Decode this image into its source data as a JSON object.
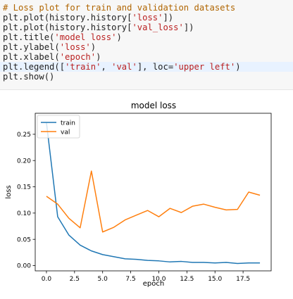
{
  "code_cell": {
    "lines": [
      "# Loss plot for train and validation datasets",
      "plt.plot(history.history['loss'])",
      "plt.plot(history.history['val_loss'])",
      "plt.title('model loss')",
      "plt.ylabel('loss')",
      "plt.xlabel('epoch')",
      "plt.legend(['train', 'val'], loc='upper left')",
      "plt.show()"
    ]
  },
  "colors": {
    "train": "#1f77b4",
    "val": "#ff7f0e",
    "code_comment": "#b06500",
    "code_string": "#ba2121",
    "active_line": "#e8f2ff"
  },
  "chart_data": {
    "type": "line",
    "title": "model loss",
    "xlabel": "epoch",
    "ylabel": "loss",
    "x": [
      0,
      1,
      2,
      3,
      4,
      5,
      6,
      7,
      8,
      9,
      10,
      11,
      12,
      13,
      14,
      15,
      16,
      17,
      18,
      19
    ],
    "xlim": [
      -1,
      20
    ],
    "ylim": [
      -0.01,
      0.29
    ],
    "xticks": [
      0,
      2.5,
      5,
      7.5,
      10,
      12.5,
      15,
      17.5
    ],
    "xtick_labels": [
      "0.0",
      "2.5",
      "5.0",
      "7.5",
      "10.0",
      "12.5",
      "15.0",
      "17.5"
    ],
    "yticks": [
      0,
      0.05,
      0.1,
      0.15,
      0.2,
      0.25
    ],
    "ytick_labels": [
      "0.00",
      "0.05",
      "0.10",
      "0.15",
      "0.20",
      "0.25"
    ],
    "grid": false,
    "legend_position": "top-left",
    "series": [
      {
        "name": "train",
        "values": [
          0.272,
          0.093,
          0.058,
          0.039,
          0.028,
          0.021,
          0.017,
          0.013,
          0.012,
          0.01,
          0.009,
          0.007,
          0.008,
          0.006,
          0.006,
          0.005,
          0.006,
          0.004,
          0.005,
          0.005
        ]
      },
      {
        "name": "val",
        "values": [
          0.132,
          0.117,
          0.09,
          0.072,
          0.18,
          0.064,
          0.073,
          0.087,
          0.096,
          0.105,
          0.093,
          0.109,
          0.101,
          0.113,
          0.117,
          0.111,
          0.106,
          0.107,
          0.14,
          0.134
        ]
      }
    ]
  }
}
